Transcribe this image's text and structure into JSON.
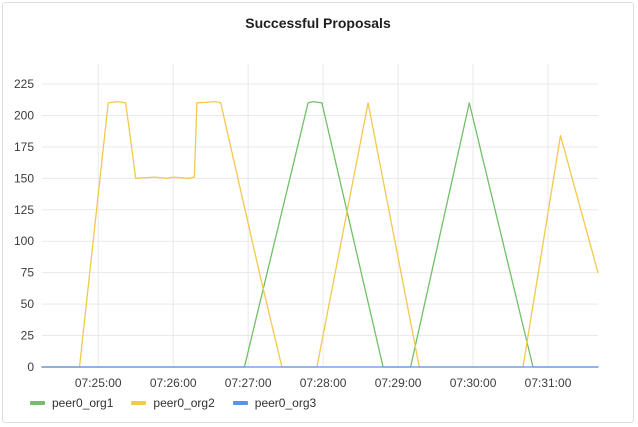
{
  "panel": {
    "title": "Successful Proposals"
  },
  "colors": {
    "peer0_org1": "#73bf69",
    "peer0_org2": "#f2c94c",
    "peer0_org3": "#5794f2",
    "grid": "#e9e9e9"
  },
  "chart_data": {
    "type": "line",
    "title": "Successful Proposals",
    "xlabel": "",
    "ylabel": "",
    "x_range": [
      "07:24:15",
      "07:31:40"
    ],
    "ylim": [
      0,
      225
    ],
    "y_ticks": [
      0,
      25,
      50,
      75,
      100,
      125,
      150,
      175,
      200,
      225
    ],
    "x_ticks": [
      "07:25:00",
      "07:26:00",
      "07:27:00",
      "07:28:00",
      "07:29:00",
      "07:30:00",
      "07:31:00"
    ],
    "grid": true,
    "legend": "bottom-left",
    "series": [
      {
        "name": "peer0_org1",
        "color": "#73bf69",
        "x": [
          "07:24:15",
          "07:26:57",
          "07:27:48",
          "07:27:52",
          "07:27:59",
          "07:28:48",
          "07:29:10",
          "07:29:57",
          "07:30:48",
          "07:31:40"
        ],
        "y": [
          0,
          0,
          210,
          211,
          210,
          0,
          0,
          210,
          0,
          0
        ]
      },
      {
        "name": "peer0_org2",
        "color": "#f2c94c",
        "x": [
          "07:24:15",
          "07:24:45",
          "07:25:08",
          "07:25:15",
          "07:25:22",
          "07:25:30",
          "07:25:45",
          "07:25:55",
          "07:26:00",
          "07:26:12",
          "07:26:17",
          "07:26:19",
          "07:26:34",
          "07:26:38",
          "07:27:09",
          "07:27:27",
          "07:27:55",
          "07:28:36",
          "07:29:17",
          "07:29:48",
          "07:30:05",
          "07:30:40",
          "07:31:10",
          "07:31:40"
        ],
        "y": [
          0,
          0,
          210,
          211,
          210,
          150,
          151,
          150,
          151,
          150,
          151,
          210,
          211,
          210,
          75,
          0,
          0,
          210,
          0,
          0,
          0,
          0,
          184,
          75
        ]
      },
      {
        "name": "peer0_org3",
        "color": "#5794f2",
        "x": [
          "07:24:15",
          "07:31:40"
        ],
        "y": [
          0,
          0
        ]
      }
    ]
  }
}
